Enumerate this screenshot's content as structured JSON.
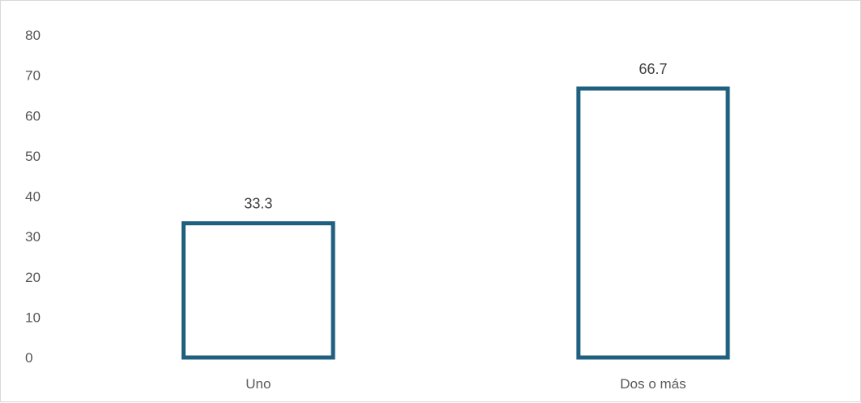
{
  "chart_data": {
    "type": "bar",
    "categories": [
      "Uno",
      "Dos o más"
    ],
    "values": [
      33.3,
      66.7
    ],
    "data_labels": [
      "33.3",
      "66.7"
    ],
    "yticks": [
      "0",
      "10",
      "20",
      "30",
      "40",
      "50",
      "60",
      "70",
      "80"
    ],
    "ylim": [
      0,
      80
    ],
    "title": "",
    "xlabel": "",
    "ylabel": "",
    "grid": false,
    "legend": "none",
    "bar_style": "outline",
    "colors": {
      "bar_stroke": "#1f5f7f",
      "bar_fill": "#ffffff",
      "frame": "#d9d9d9",
      "tick_text": "#595959",
      "label_text": "#404040"
    }
  }
}
